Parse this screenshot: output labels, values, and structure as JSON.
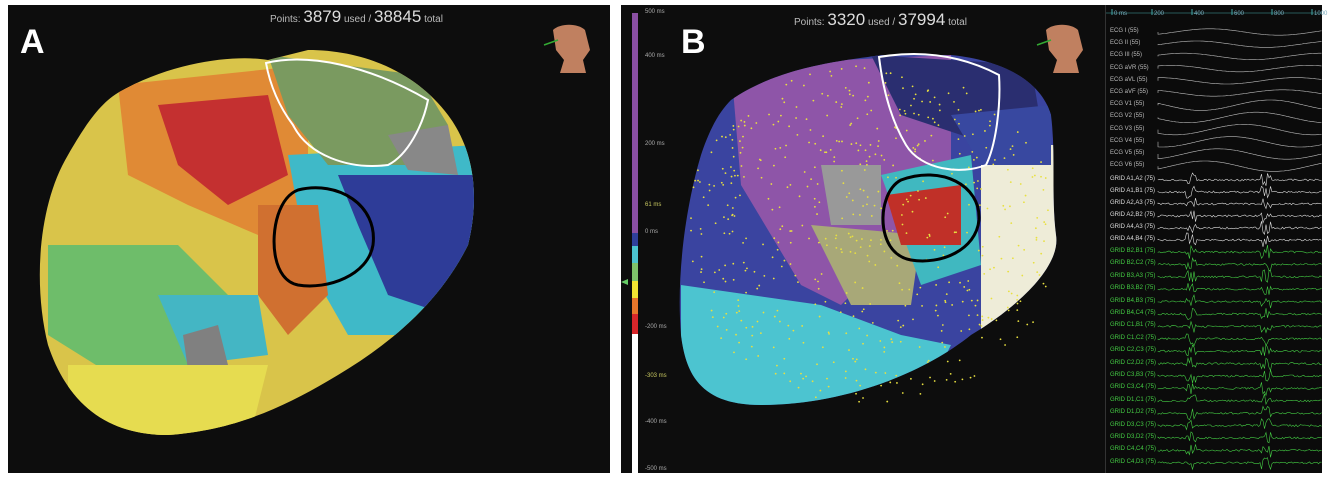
{
  "panel_a": {
    "label": "A",
    "points_prefix": "Points:",
    "points_used": "3879",
    "used_label": "used /",
    "points_total": "38845",
    "total_label": "total",
    "icon": "torso-orientation-icon"
  },
  "panel_b": {
    "label": "B",
    "points_prefix": "Points:",
    "points_used": "3320",
    "used_label": "used /",
    "points_total": "37994",
    "total_label": "total",
    "icon": "torso-orientation-icon",
    "color_scale": {
      "ticks": [
        {
          "label": "500 ms",
          "value": 500
        },
        {
          "label": "400 ms",
          "value": 400
        },
        {
          "label": "200 ms",
          "value": 200
        },
        {
          "label": "61 ms",
          "value": 61,
          "highlight": true
        },
        {
          "label": "0 ms",
          "value": 0
        },
        {
          "label": "-200 ms",
          "value": -200
        },
        {
          "label": "-303 ms",
          "value": -303,
          "highlight": true
        },
        {
          "label": "-400 ms",
          "value": -400
        },
        {
          "label": "-500 ms",
          "value": -500
        }
      ],
      "colors": [
        "#8a4fa3",
        "#2f3f9a",
        "#4cc4d0",
        "#7ec26a",
        "#f2e432",
        "#e8762a",
        "#d8262a",
        "#ffffff"
      ]
    },
    "ecg": {
      "time_ticks": [
        "0 ms",
        "200",
        "400",
        "600",
        "800",
        "1000"
      ],
      "ecg_leads": [
        "ECG I (55)",
        "ECG II (55)",
        "ECG III (55)",
        "ECG aVR (55)",
        "ECG aVL (55)",
        "ECG aVF (55)",
        "ECG V1 (55)",
        "ECG V2 (55)",
        "ECG V3 (55)",
        "ECG V4 (55)",
        "ECG V5 (55)",
        "ECG V6 (55)"
      ],
      "grid_white": [
        "GRID A1,A2 (75)",
        "GRID A1,B1 (75)",
        "GRID A2,A3 (75)",
        "GRID A2,B2 (75)",
        "GRID A4,A3 (75)",
        "GRID A4,B4 (75)"
      ],
      "grid_green": [
        "GRID B2,B1 (75)",
        "GRID B2,C2 (75)",
        "GRID B3,A3 (75)",
        "GRID B3,B2 (75)",
        "GRID B4,B3 (75)",
        "GRID B4,C4 (75)",
        "GRID C1,B1 (75)",
        "GRID C1,C2 (75)",
        "GRID C2,C3 (75)",
        "GRID C2,D2 (75)",
        "GRID C3,B3 (75)",
        "GRID C3,C4 (75)",
        "GRID D1,C1 (75)",
        "GRID D1,D2 (75)",
        "GRID D3,C3 (75)",
        "GRID D3,D2 (75)",
        "GRID C4,C4 (75)",
        "GRID C4,D3 (75)"
      ]
    }
  }
}
